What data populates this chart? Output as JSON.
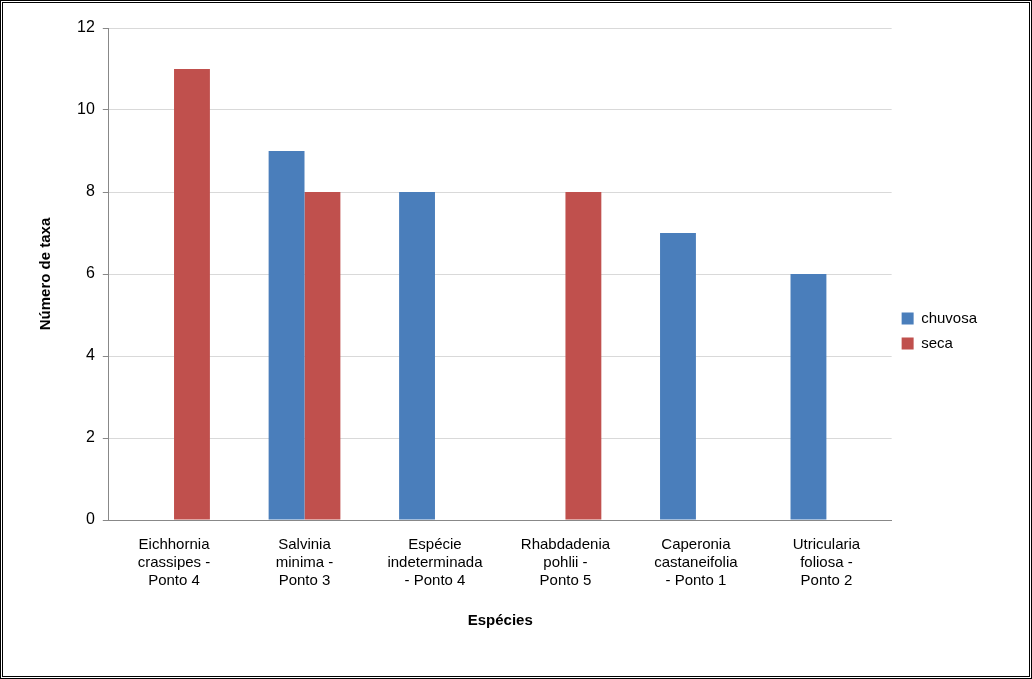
{
  "chart_data": {
    "type": "bar",
    "xlabel": "Espécies",
    "ylabel": "Número de taxa",
    "categories": [
      "Eichhornia crassipes - Ponto 4",
      "Salvinia minima - Ponto 3",
      "Espécie indeterminada - Ponto 4",
      "Rhabdadenia pohlii - Ponto 5",
      "Caperonia castaneifolia - Ponto 1",
      "Utricularia foliosa - Ponto 2"
    ],
    "series": [
      {
        "name": "chuvosa",
        "color": "#4a7ebb",
        "values": [
          null,
          9,
          8,
          null,
          7,
          6
        ]
      },
      {
        "name": "seca",
        "color": "#c0504d",
        "values": [
          11,
          8,
          null,
          8,
          null,
          null
        ]
      }
    ],
    "ylim": [
      0,
      12
    ],
    "yticks": [
      0,
      2,
      4,
      6,
      8,
      10,
      12
    ],
    "grid": "y",
    "legend": "right"
  }
}
